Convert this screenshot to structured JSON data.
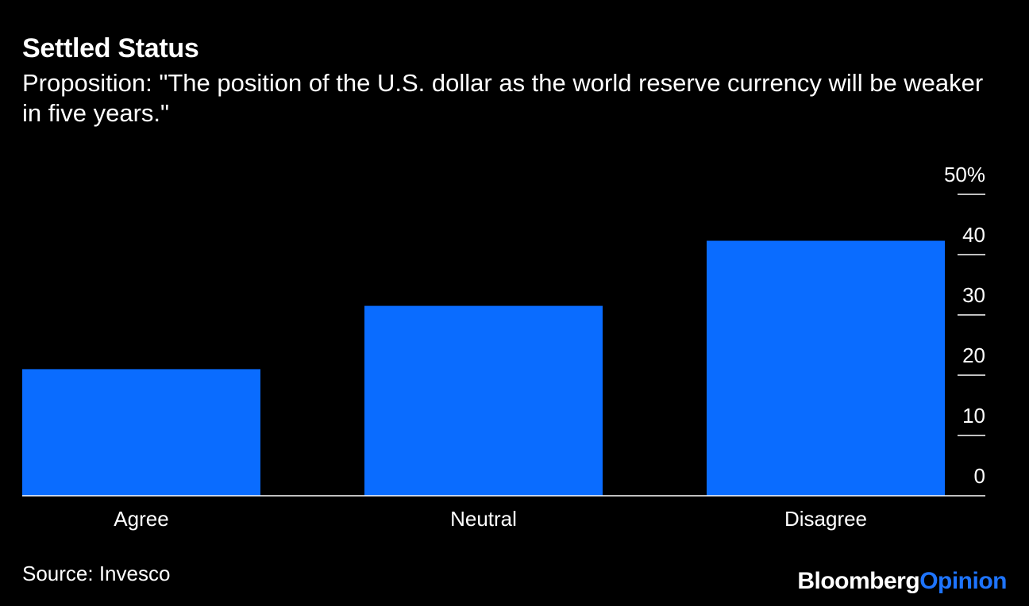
{
  "header": {
    "title": "Settled Status",
    "subtitle": "Proposition: \"The position of the U.S. dollar as the world reserve currency will be weaker in five years.\""
  },
  "footer": {
    "source": "Source: Invesco",
    "brand_part1": "Bloomberg",
    "brand_part2": "Opinion"
  },
  "colors": {
    "background": "#000000",
    "bar": "#0a6cff",
    "text": "#ffffff",
    "brand_accent": "#1e74ff"
  },
  "chart_data": {
    "type": "bar",
    "categories": [
      "Agree",
      "Neutral",
      "Disagree"
    ],
    "values": [
      21,
      31.5,
      42.3
    ],
    "ylim": [
      0,
      50
    ],
    "yticks": [
      0,
      10,
      20,
      30,
      40,
      50
    ],
    "ytick_labels": [
      "0",
      "10",
      "20",
      "30",
      "40",
      "50%"
    ],
    "y_axis_position": "right",
    "grid": false
  }
}
